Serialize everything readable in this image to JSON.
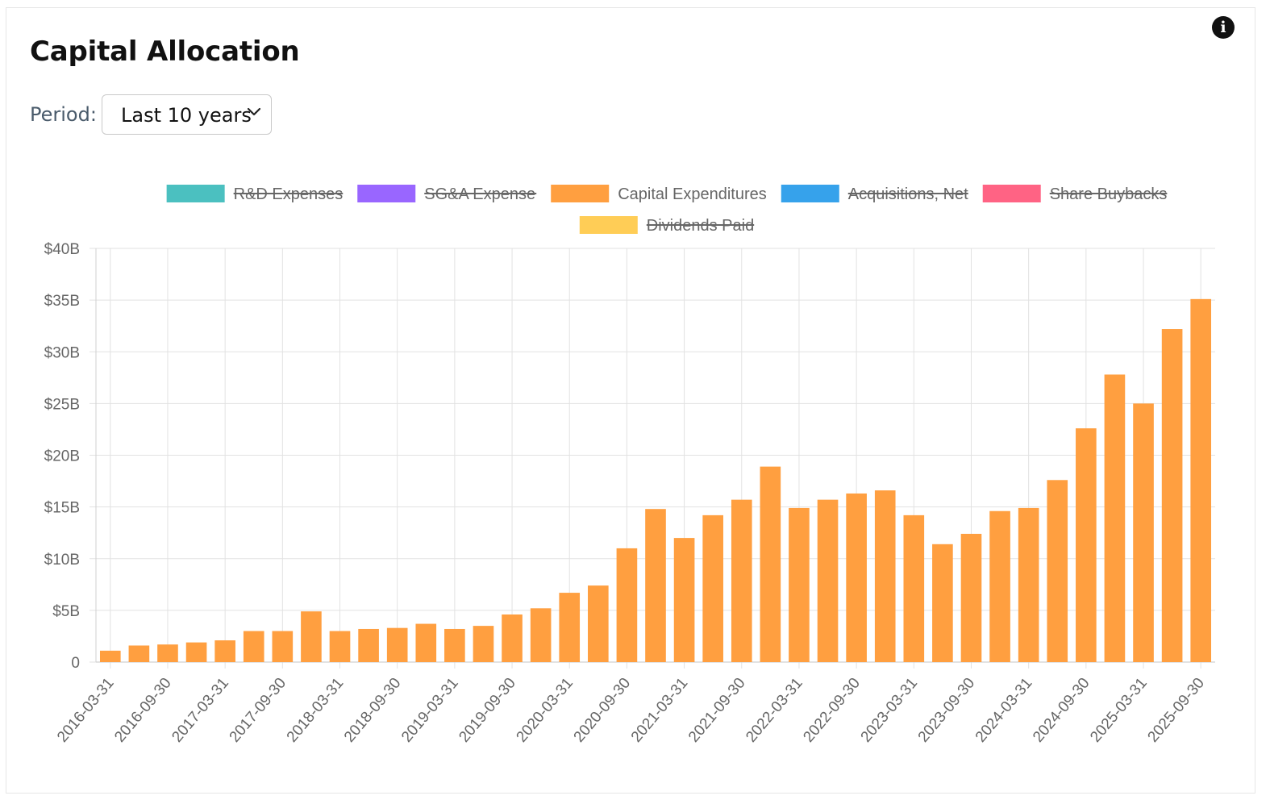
{
  "header": {
    "title": "Capital Allocation",
    "info_icon": "info-icon"
  },
  "period": {
    "label": "Period:",
    "selected": "Last 10 years",
    "icon": "chevron-down-icon"
  },
  "colors": {
    "rd": "#4bc0c0",
    "sga": "#9966ff",
    "capex": "#ff9f40",
    "acquisitions": "#36a2eb",
    "buybacks": "#ff6384",
    "dividends": "#ffcd56",
    "grid": "#e2e2e2",
    "axis_text": "#666666"
  },
  "chart_data": {
    "type": "bar",
    "legend": [
      {
        "label": "R&D Expenses",
        "color": "#4bc0c0",
        "hidden": true
      },
      {
        "label": "SG&A Expense",
        "color": "#9966ff",
        "hidden": true
      },
      {
        "label": "Capital Expenditures",
        "color": "#ff9f40",
        "hidden": false
      },
      {
        "label": "Acquisitions, Net",
        "color": "#36a2eb",
        "hidden": true
      },
      {
        "label": "Share Buybacks",
        "color": "#ff6384",
        "hidden": true
      },
      {
        "label": "Dividends Paid",
        "color": "#ffcd56",
        "hidden": true
      }
    ],
    "legend_position": "top",
    "categories": [
      "2016-03-31",
      "2016-06-30",
      "2016-09-30",
      "2016-12-31",
      "2017-03-31",
      "2017-06-30",
      "2017-09-30",
      "2017-12-31",
      "2018-03-31",
      "2018-06-30",
      "2018-09-30",
      "2018-12-31",
      "2019-03-31",
      "2019-06-30",
      "2019-09-30",
      "2019-12-31",
      "2020-03-31",
      "2020-06-30",
      "2020-09-30",
      "2020-12-31",
      "2021-03-31",
      "2021-06-30",
      "2021-09-30",
      "2021-12-31",
      "2022-03-31",
      "2022-06-30",
      "2022-09-30",
      "2022-12-31",
      "2023-03-31",
      "2023-06-30",
      "2023-09-30",
      "2023-12-31",
      "2024-03-31",
      "2024-06-30",
      "2024-09-30",
      "2024-12-31",
      "2025-03-31",
      "2025-06-30",
      "2025-09-30"
    ],
    "tick_labels": [
      "2016-03-31",
      "2016-09-30",
      "2017-03-31",
      "2017-09-30",
      "2018-03-31",
      "2018-09-30",
      "2019-03-31",
      "2019-09-30",
      "2020-03-31",
      "2020-09-30",
      "2021-03-31",
      "2021-09-30",
      "2022-03-31",
      "2022-09-30",
      "2023-03-31",
      "2023-09-30",
      "2024-03-31",
      "2024-09-30",
      "2025-03-31",
      "2025-09-30"
    ],
    "series": [
      {
        "name": "Capital Expenditures",
        "values": [
          1.1,
          1.6,
          1.7,
          1.9,
          2.1,
          3.0,
          3.0,
          4.9,
          3.0,
          3.2,
          3.3,
          3.7,
          3.2,
          3.5,
          4.6,
          5.2,
          6.7,
          7.4,
          11.0,
          14.8,
          12.0,
          14.2,
          15.7,
          18.9,
          14.9,
          15.7,
          16.3,
          16.6,
          14.2,
          11.4,
          12.4,
          14.6,
          14.9,
          17.6,
          22.6,
          27.8,
          25.0,
          32.2,
          35.1
        ]
      }
    ],
    "ylim": [
      0,
      40
    ],
    "yticks": [
      0,
      5,
      10,
      15,
      20,
      25,
      30,
      35,
      40
    ],
    "ytick_labels": [
      "0",
      "$5B",
      "$10B",
      "$15B",
      "$20B",
      "$25B",
      "$30B",
      "$35B",
      "$40B"
    ],
    "unit": "billions USD",
    "grid": true
  }
}
